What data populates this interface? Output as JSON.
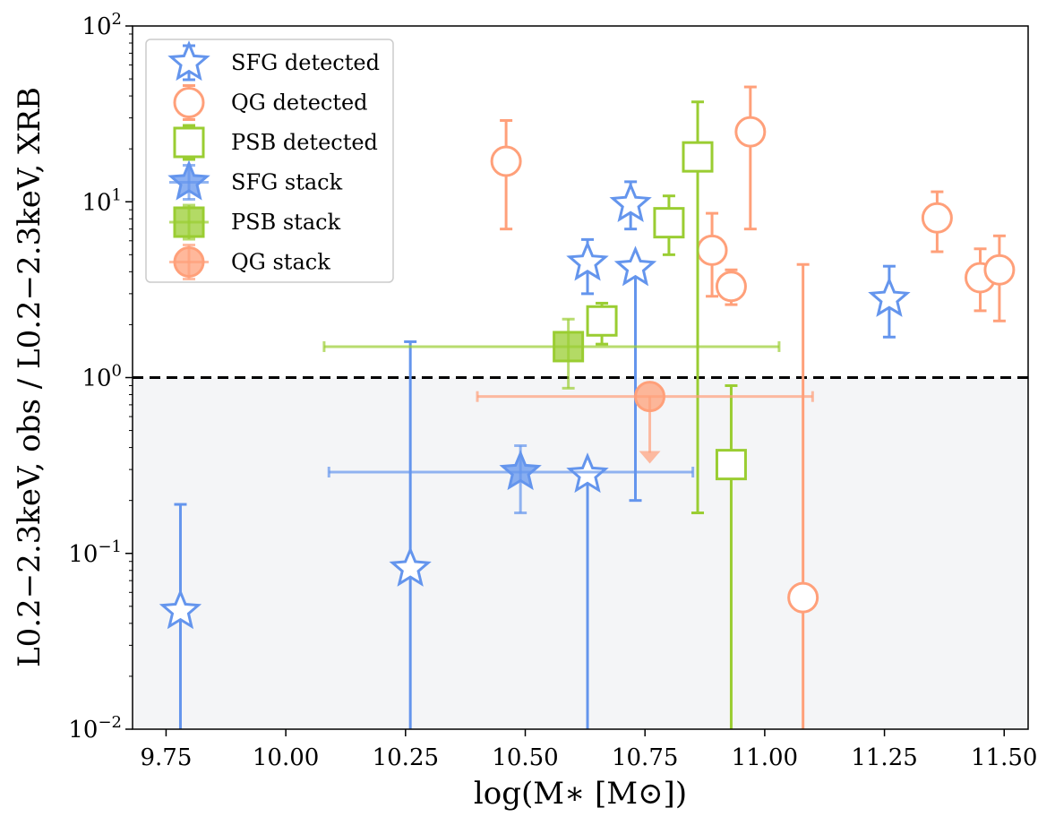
{
  "chart_data": {
    "type": "scatter",
    "xlabel": "log(M∗ [M⊙])",
    "ylabel": "L0.2−2.3keV, obs / L0.2−2.3keV, XRB",
    "yscale": "log",
    "xlim": [
      9.68,
      11.55
    ],
    "ylim": [
      0.01,
      100
    ],
    "grid": false,
    "legend_position": "top-left",
    "xticks": [
      "9.75",
      "10.00",
      "10.25",
      "10.50",
      "10.75",
      "11.00",
      "11.25",
      "11.50"
    ],
    "xtick_values": [
      9.75,
      10.0,
      10.25,
      10.5,
      10.75,
      11.0,
      11.25,
      11.5
    ],
    "ytick_values": [
      0.01,
      0.1,
      1,
      10,
      100
    ],
    "ytick_bases": [
      "10",
      "10",
      "10",
      "10",
      "10"
    ],
    "ytick_exps": [
      "−2",
      "−1",
      "0",
      "1",
      "2"
    ],
    "reference_line": {
      "y": 1,
      "style": "dashed",
      "color": "#000000"
    },
    "shaded_region": {
      "y_from": 0.01,
      "y_to": 1,
      "color": "#f4f5f7"
    },
    "colors": {
      "sfg": "#6495ed",
      "qg": "#ffa07a",
      "psb": "#9acd32"
    },
    "series": [
      {
        "name": "SFG detected",
        "marker": "star",
        "filled": false,
        "color": "#6495ed",
        "points": [
          {
            "x": 9.78,
            "y": 0.047,
            "ylo": 0.009,
            "yhi": 0.19
          },
          {
            "x": 10.26,
            "y": 0.082,
            "ylo": 0.009,
            "yhi": 1.6
          },
          {
            "x": 10.63,
            "y": 4.5,
            "ylo": 3.0,
            "yhi": 6.1
          },
          {
            "x": 10.63,
            "y": 0.28,
            "ylo": 0.009,
            "yhi": 0.3
          },
          {
            "x": 10.72,
            "y": 9.7,
            "ylo": 7.0,
            "yhi": 13.0
          },
          {
            "x": 10.73,
            "y": 4.2,
            "ylo": 0.2,
            "yhi": 4.3
          },
          {
            "x": 11.26,
            "y": 2.8,
            "ylo": 1.7,
            "yhi": 4.3
          }
        ]
      },
      {
        "name": "QG detected",
        "marker": "circle",
        "filled": false,
        "color": "#ffa07a",
        "points": [
          {
            "x": 10.46,
            "y": 17.0,
            "ylo": 7.0,
            "yhi": 29.0
          },
          {
            "x": 10.89,
            "y": 5.3,
            "ylo": 2.9,
            "yhi": 8.6
          },
          {
            "x": 10.93,
            "y": 3.3,
            "ylo": 2.6,
            "yhi": 4.1
          },
          {
            "x": 10.97,
            "y": 25.0,
            "ylo": 7.0,
            "yhi": 45.0
          },
          {
            "x": 11.08,
            "y": 0.056,
            "ylo": 0.009,
            "yhi": 4.4
          },
          {
            "x": 11.36,
            "y": 8.1,
            "ylo": 5.2,
            "yhi": 11.4
          },
          {
            "x": 11.45,
            "y": 3.7,
            "ylo": 2.4,
            "yhi": 5.4
          },
          {
            "x": 11.49,
            "y": 4.1,
            "ylo": 2.1,
            "yhi": 6.4
          }
        ]
      },
      {
        "name": "PSB detected",
        "marker": "square",
        "filled": false,
        "color": "#9acd32",
        "points": [
          {
            "x": 10.66,
            "y": 2.1,
            "ylo": 1.55,
            "yhi": 2.65
          },
          {
            "x": 10.8,
            "y": 7.6,
            "ylo": 5.0,
            "yhi": 10.8
          },
          {
            "x": 10.86,
            "y": 18.0,
            "ylo": 0.17,
            "yhi": 37.0
          },
          {
            "x": 10.93,
            "y": 0.32,
            "ylo": 0.009,
            "yhi": 0.9
          }
        ]
      },
      {
        "name": "SFG stack",
        "marker": "star",
        "filled": true,
        "color": "#6495ed",
        "points": [
          {
            "x": 10.49,
            "y": 0.29,
            "ylo": 0.17,
            "yhi": 0.41,
            "xlo": 10.09,
            "xhi": 10.85
          }
        ]
      },
      {
        "name": "PSB stack",
        "marker": "square",
        "filled": true,
        "color": "#9acd32",
        "points": [
          {
            "x": 10.59,
            "y": 1.5,
            "ylo": 0.87,
            "yhi": 2.15,
            "xlo": 10.08,
            "xhi": 11.03
          }
        ]
      },
      {
        "name": "QG stack",
        "marker": "circle",
        "filled": true,
        "color": "#ffa07a",
        "upper_limit": true,
        "points": [
          {
            "x": 10.76,
            "y": 0.78,
            "arrow_to": 0.34,
            "xlo": 10.4,
            "xhi": 11.1
          }
        ]
      }
    ],
    "legend": [
      {
        "label": "SFG detected",
        "marker": "star",
        "filled": false,
        "color": "#6495ed"
      },
      {
        "label": "QG detected",
        "marker": "circle",
        "filled": false,
        "color": "#ffa07a"
      },
      {
        "label": "PSB detected",
        "marker": "square",
        "filled": false,
        "color": "#9acd32"
      },
      {
        "label": "SFG stack",
        "marker": "star",
        "filled": true,
        "color": "#6495ed"
      },
      {
        "label": "PSB stack",
        "marker": "square",
        "filled": true,
        "color": "#9acd32"
      },
      {
        "label": "QG stack",
        "marker": "circle",
        "filled": true,
        "color": "#ffa07a"
      }
    ]
  }
}
